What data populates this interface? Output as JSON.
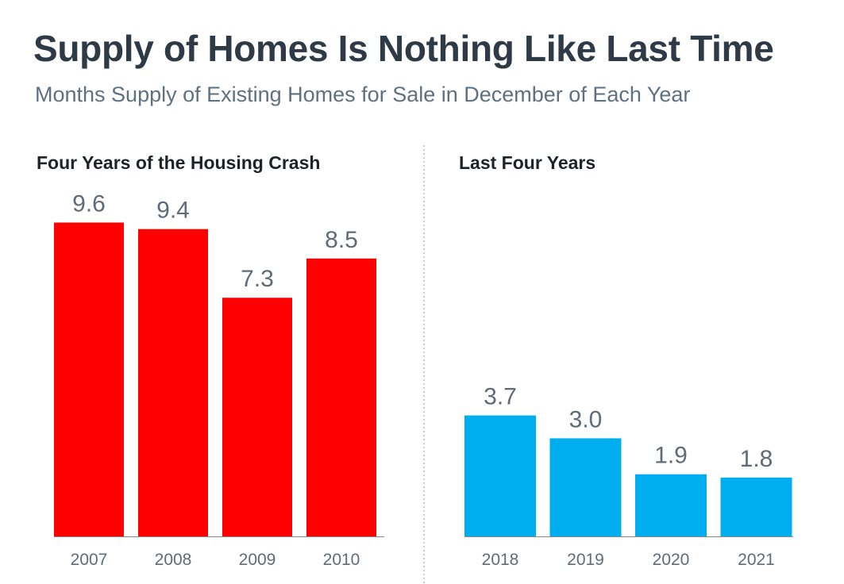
{
  "header": {
    "title": "Supply of Homes Is Nothing Like Last Time",
    "subtitle": "Months Supply of Existing Homes for Sale in December of Each Year"
  },
  "colors": {
    "crash_bar": "#ff0000",
    "recent_bar": "#00aeef",
    "axis": "#888888",
    "divider": "#999999"
  },
  "chart_data": [
    {
      "type": "bar",
      "title": "Four Years of the Housing Crash",
      "categories": [
        "2007",
        "2008",
        "2009",
        "2010"
      ],
      "values": [
        9.6,
        9.4,
        7.3,
        8.5
      ],
      "value_labels": [
        "9.6",
        "9.4",
        "7.3",
        "8.5"
      ],
      "ylim": [
        0,
        10
      ],
      "grid": false,
      "color": "#ff0000"
    },
    {
      "type": "bar",
      "title": "Last Four Years",
      "categories": [
        "2018",
        "2019",
        "2020",
        "2021"
      ],
      "values": [
        3.7,
        3.0,
        1.9,
        1.8
      ],
      "value_labels": [
        "3.7",
        "3.0",
        "1.9",
        "1.8"
      ],
      "ylim": [
        0,
        10
      ],
      "grid": false,
      "color": "#00aeef"
    }
  ]
}
